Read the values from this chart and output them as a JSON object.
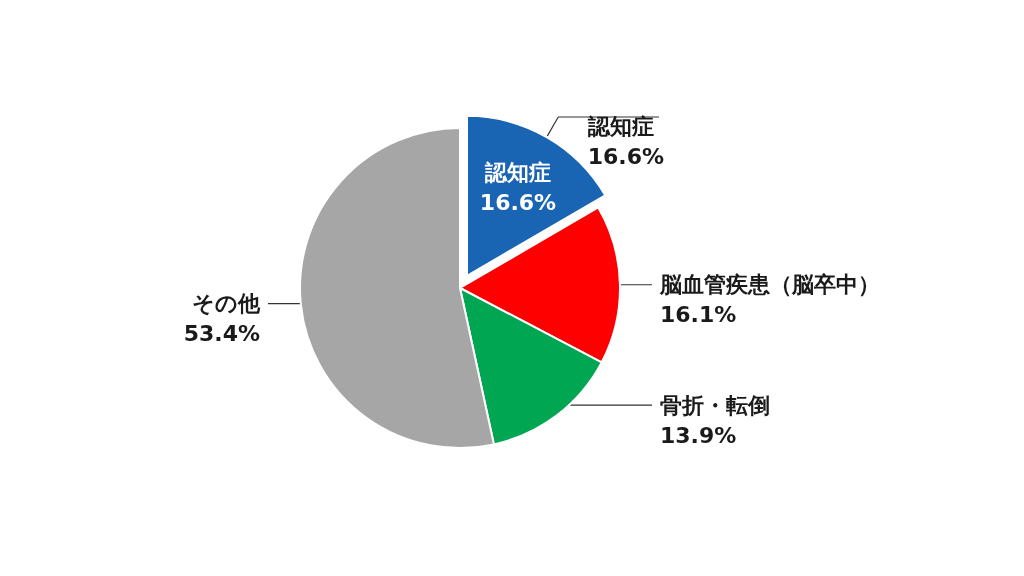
{
  "chart_data": {
    "type": "pie",
    "categories": [
      "認知症",
      "脳血管疾患（脳卒中）",
      "骨折・転倒",
      "その他"
    ],
    "values": [
      16.6,
      16.1,
      13.9,
      53.4
    ],
    "colors": [
      "#1a64b4",
      "#ff0000",
      "#00a651",
      "#a6a6a6"
    ],
    "value_labels": [
      "16.6%",
      "16.1%",
      "13.9%",
      "53.4%"
    ],
    "annotations": [
      {
        "text": "認知症\n16.6%",
        "x": "認知症"
      }
    ]
  }
}
